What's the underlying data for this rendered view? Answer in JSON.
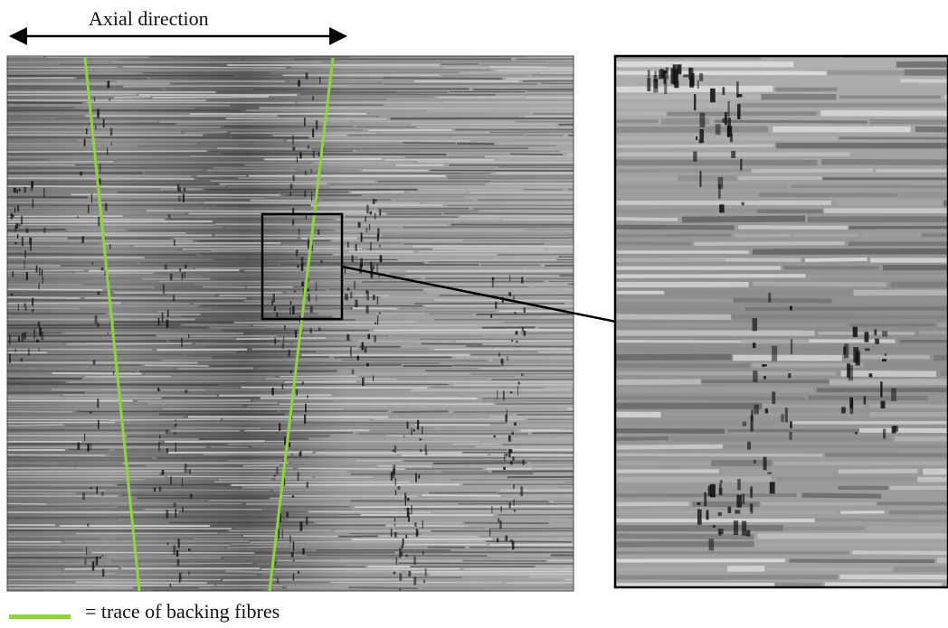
{
  "figure": {
    "axial_label": "Axial direction",
    "legend_label": "= trace of backing fibres"
  },
  "colors": {
    "trace": "#8ed43c",
    "frame": "#000000",
    "background": "#ffffff"
  }
}
